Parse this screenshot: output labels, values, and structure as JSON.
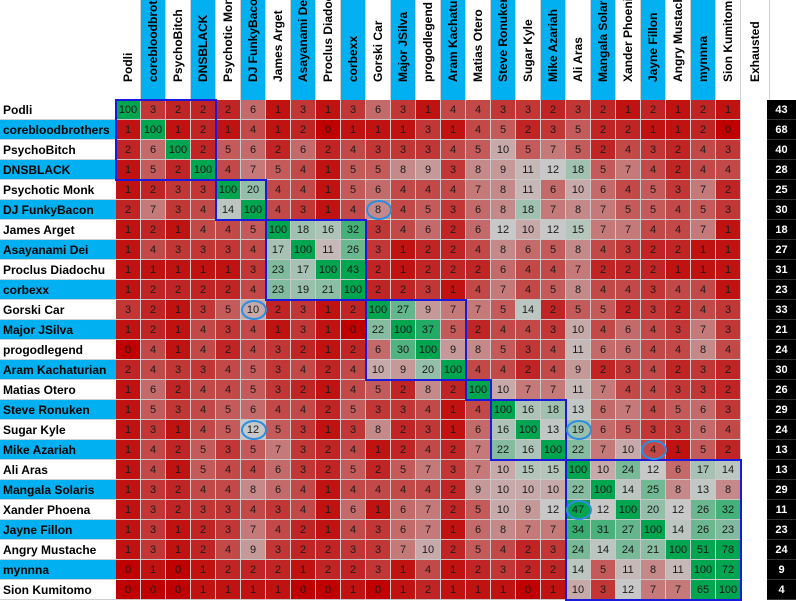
{
  "chart_data": {
    "type": "heatmap",
    "rows": [
      "Podli",
      "corebloodbrothers",
      "PsychoBitch",
      "DNSBLACK",
      "Psychotic Monk",
      "DJ FunkyBacon",
      "James Arget",
      "Asayanami Dei",
      "Proclus Diadochu",
      "corbexx",
      "Gorski Car",
      "Major JSilva",
      "progodlegend",
      "Aram Kachaturian",
      "Matias Otero",
      "Steve Ronuken",
      "Sugar Kyle",
      "Mike Azariah",
      "Ali Aras",
      "Mangala Solaris",
      "Xander Phoena",
      "Jayne Fillon",
      "Angry Mustache",
      "mynnna",
      "Sion Kumitomo"
    ],
    "columns": [
      "Podli",
      "corebloodbrothers",
      "PsychoBitch",
      "DNSBLACK",
      "Psychotic Monk",
      "DJ FunkyBacon",
      "James Arget",
      "Asayanami Dei",
      "Proclus Diadochu",
      "corbexx",
      "Gorski Car",
      "Major JSilva",
      "progodlegend",
      "Aram Kachaturian",
      "Matias Otero",
      "Steve Ronuken",
      "Sugar Kyle",
      "Mike Azariah",
      "Ali Aras",
      "Mangala Solaris",
      "Xander Phoenix",
      "Jayne Fillon",
      "Angry Mustache",
      "mynnna",
      "Sion Kumitomo",
      "Exhausted"
    ],
    "values": [
      [
        100,
        3,
        2,
        2,
        2,
        6,
        1,
        3,
        1,
        3,
        6,
        3,
        1,
        4,
        4,
        3,
        3,
        2,
        3,
        2,
        1,
        2,
        1,
        2,
        1
      ],
      [
        1,
        100,
        1,
        2,
        1,
        4,
        1,
        2,
        0,
        1,
        1,
        1,
        3,
        1,
        4,
        5,
        2,
        3,
        5,
        2,
        2,
        1,
        1,
        2,
        0
      ],
      [
        2,
        6,
        100,
        2,
        5,
        6,
        2,
        6,
        2,
        4,
        3,
        3,
        3,
        4,
        5,
        10,
        5,
        7,
        5,
        2,
        4,
        3,
        2,
        4,
        3
      ],
      [
        1,
        5,
        2,
        100,
        4,
        7,
        5,
        4,
        1,
        5,
        5,
        8,
        9,
        3,
        8,
        9,
        11,
        12,
        18,
        5,
        7,
        4,
        2,
        4,
        4
      ],
      [
        1,
        2,
        3,
        3,
        100,
        20,
        4,
        4,
        1,
        5,
        6,
        4,
        4,
        4,
        7,
        8,
        11,
        6,
        10,
        6,
        4,
        5,
        3,
        7,
        2
      ],
      [
        2,
        7,
        3,
        4,
        14,
        100,
        4,
        3,
        1,
        4,
        8,
        4,
        5,
        3,
        6,
        8,
        18,
        7,
        8,
        7,
        5,
        5,
        4,
        5,
        3
      ],
      [
        1,
        2,
        1,
        4,
        4,
        5,
        100,
        18,
        16,
        32,
        3,
        4,
        6,
        2,
        6,
        12,
        10,
        12,
        15,
        7,
        7,
        4,
        4,
        7,
        1
      ],
      [
        1,
        4,
        3,
        3,
        3,
        4,
        17,
        100,
        11,
        26,
        3,
        1,
        2,
        2,
        4,
        8,
        6,
        5,
        8,
        4,
        3,
        2,
        2,
        1,
        1
      ],
      [
        1,
        1,
        1,
        1,
        1,
        3,
        23,
        17,
        100,
        43,
        2,
        1,
        2,
        2,
        2,
        6,
        4,
        4,
        7,
        2,
        2,
        2,
        1,
        1,
        1
      ],
      [
        1,
        2,
        2,
        2,
        2,
        4,
        23,
        19,
        21,
        100,
        2,
        2,
        3,
        1,
        4,
        7,
        4,
        5,
        8,
        4,
        4,
        3,
        4,
        4,
        1
      ],
      [
        3,
        2,
        1,
        3,
        5,
        10,
        2,
        3,
        1,
        2,
        100,
        27,
        9,
        7,
        7,
        5,
        14,
        2,
        5,
        5,
        2,
        3,
        2,
        4,
        3
      ],
      [
        1,
        2,
        1,
        4,
        3,
        4,
        1,
        3,
        1,
        0,
        22,
        100,
        37,
        5,
        2,
        4,
        4,
        3,
        10,
        4,
        6,
        4,
        3,
        7,
        3
      ],
      [
        0,
        4,
        1,
        4,
        2,
        4,
        3,
        2,
        1,
        2,
        6,
        30,
        100,
        9,
        8,
        5,
        3,
        4,
        11,
        6,
        6,
        4,
        4,
        8,
        4
      ],
      [
        2,
        4,
        3,
        3,
        4,
        5,
        3,
        4,
        2,
        4,
        10,
        9,
        20,
        100,
        4,
        4,
        2,
        4,
        9,
        2,
        3,
        4,
        2,
        3,
        2
      ],
      [
        1,
        6,
        2,
        4,
        4,
        5,
        3,
        2,
        1,
        4,
        5,
        2,
        8,
        2,
        100,
        10,
        7,
        7,
        11,
        7,
        4,
        4,
        3,
        3,
        2
      ],
      [
        1,
        5,
        3,
        4,
        5,
        6,
        4,
        4,
        2,
        5,
        3,
        3,
        4,
        1,
        4,
        100,
        16,
        18,
        13,
        6,
        7,
        4,
        5,
        6,
        3
      ],
      [
        1,
        3,
        1,
        4,
        5,
        12,
        5,
        3,
        1,
        3,
        8,
        2,
        3,
        1,
        6,
        16,
        100,
        13,
        19,
        6,
        5,
        3,
        3,
        6,
        4
      ],
      [
        1,
        4,
        2,
        5,
        3,
        5,
        7,
        3,
        2,
        4,
        1,
        2,
        4,
        2,
        7,
        22,
        16,
        100,
        22,
        7,
        10,
        4,
        1,
        5,
        2
      ],
      [
        1,
        4,
        1,
        5,
        4,
        4,
        6,
        3,
        2,
        5,
        2,
        5,
        7,
        3,
        7,
        10,
        15,
        15,
        100,
        10,
        24,
        12,
        6,
        17,
        14
      ],
      [
        1,
        3,
        2,
        4,
        4,
        8,
        6,
        4,
        1,
        4,
        4,
        4,
        4,
        2,
        9,
        10,
        10,
        10,
        22,
        100,
        14,
        25,
        8,
        13,
        8
      ],
      [
        1,
        3,
        2,
        3,
        3,
        4,
        3,
        4,
        1,
        6,
        1,
        6,
        7,
        2,
        5,
        10,
        9,
        12,
        47,
        12,
        100,
        20,
        12,
        26,
        32
      ],
      [
        1,
        3,
        1,
        2,
        3,
        7,
        4,
        2,
        1,
        4,
        3,
        6,
        7,
        1,
        6,
        8,
        7,
        7,
        34,
        31,
        27,
        100,
        14,
        26,
        23
      ],
      [
        1,
        3,
        1,
        2,
        4,
        9,
        3,
        2,
        2,
        3,
        3,
        7,
        10,
        2,
        5,
        4,
        2,
        3,
        24,
        14,
        24,
        21,
        100,
        51,
        78
      ],
      [
        0,
        1,
        0,
        1,
        2,
        2,
        2,
        1,
        2,
        2,
        3,
        1,
        4,
        1,
        2,
        3,
        2,
        2,
        14,
        5,
        11,
        8,
        11,
        100,
        72
      ],
      [
        0,
        0,
        0,
        1,
        1,
        1,
        1,
        0,
        0,
        1,
        0,
        1,
        2,
        1,
        1,
        1,
        0,
        1,
        10,
        3,
        12,
        7,
        7,
        65,
        100
      ]
    ],
    "exhausted": [
      43,
      68,
      40,
      28,
      25,
      30,
      18,
      27,
      31,
      23,
      33,
      21,
      24,
      30,
      26,
      29,
      24,
      13,
      13,
      29,
      11,
      23,
      24,
      9,
      4
    ],
    "groups": [
      [
        0,
        3
      ],
      [
        4,
        5
      ],
      [
        6,
        9
      ],
      [
        10,
        13
      ],
      [
        14,
        14
      ],
      [
        15,
        17
      ],
      [
        18,
        24
      ]
    ],
    "circled_cells": [
      [
        5,
        10
      ],
      [
        10,
        5
      ],
      [
        16,
        5
      ],
      [
        16,
        18
      ],
      [
        17,
        21
      ],
      [
        20,
        18
      ]
    ],
    "colors": {
      "row_blue": "#00b0f0",
      "low": "#c00000",
      "mid": "#c8c8c8",
      "high": "#00a550",
      "box_border": "#1a1adc",
      "circle": "#2f8de0"
    }
  }
}
